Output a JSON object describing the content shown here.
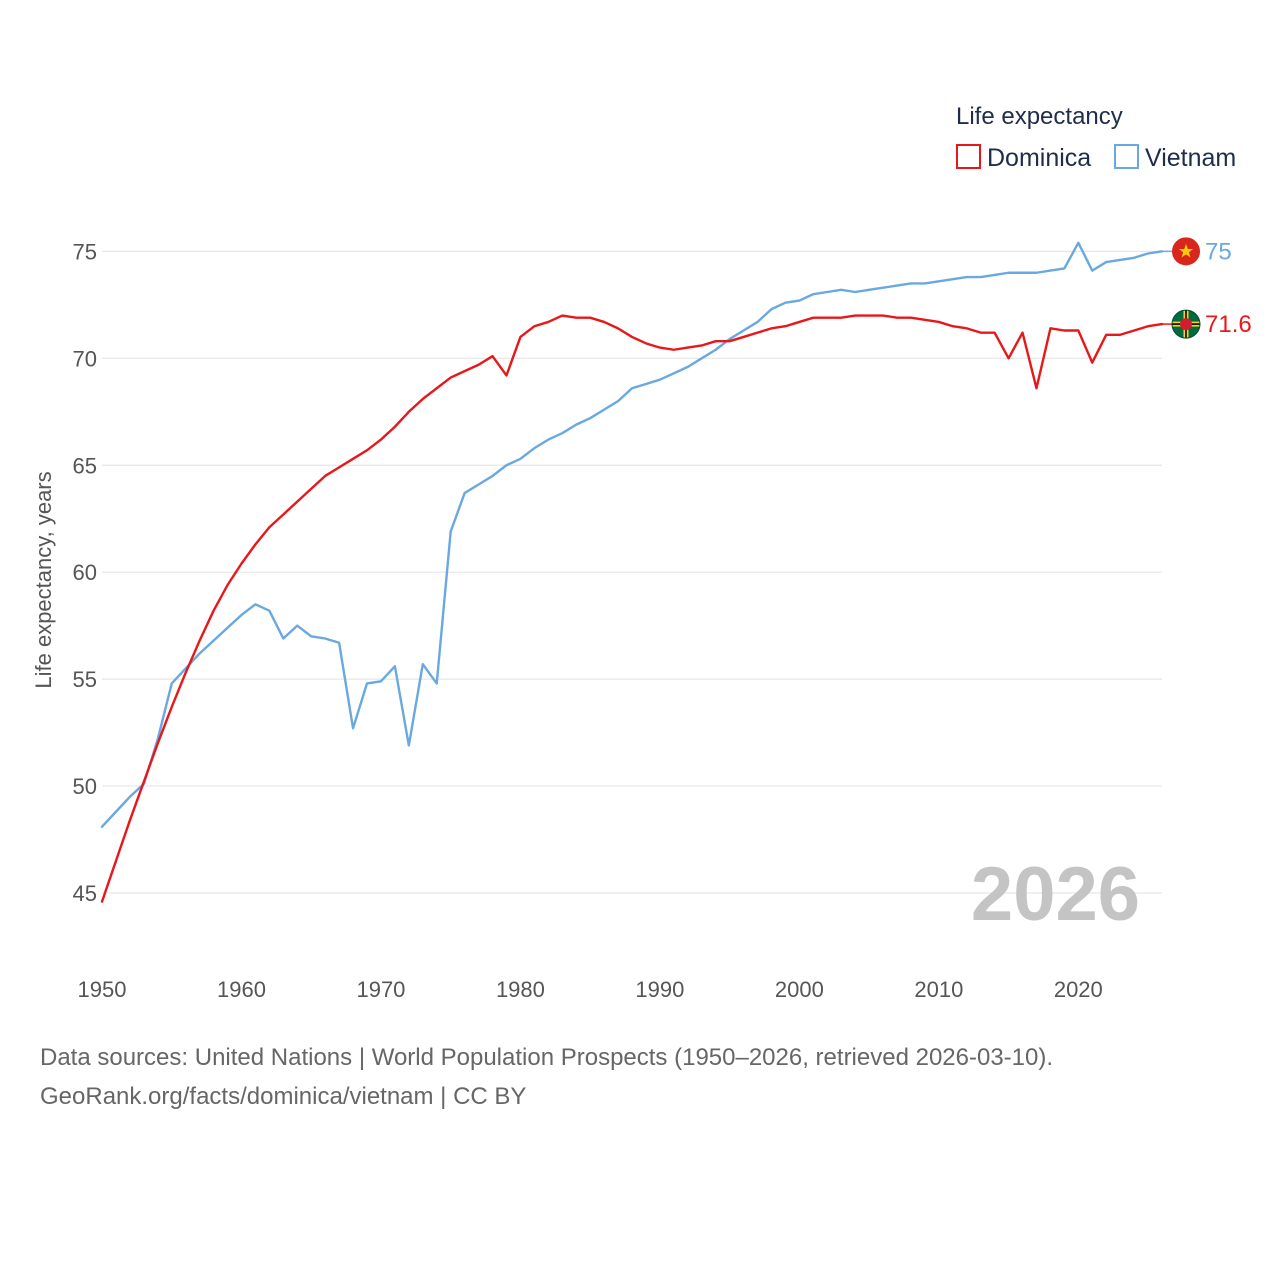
{
  "colors": {
    "dominica": "#e8171a",
    "vietnam": "#69a8e0",
    "grid": "#e6e6e6",
    "axis_text": "#555555"
  },
  "footer": {
    "sources": "Data sources: United Nations | World Population Prospects (1950–2026, retrieved 2026-03-10).",
    "link": "GeoRank.org/facts/dominica/vietnam | CC BY"
  },
  "chart_data": {
    "type": "line",
    "title": "",
    "xlabel": "",
    "ylabel": "Life expectancy, years",
    "xlim": [
      1950,
      2026
    ],
    "ylim": [
      43,
      78
    ],
    "x_ticks": [
      1950,
      1960,
      1970,
      1980,
      1990,
      2000,
      2010,
      2020
    ],
    "y_ticks": [
      45,
      50,
      55,
      60,
      65,
      70,
      75
    ],
    "grid": true,
    "legend_title": "Life expectancy",
    "legend_position": "top-right",
    "year_label": "2026",
    "x": [
      1950,
      1951,
      1952,
      1953,
      1954,
      1955,
      1956,
      1957,
      1958,
      1959,
      1960,
      1961,
      1962,
      1963,
      1964,
      1965,
      1966,
      1967,
      1968,
      1969,
      1970,
      1971,
      1972,
      1973,
      1974,
      1975,
      1976,
      1977,
      1978,
      1979,
      1980,
      1981,
      1982,
      1983,
      1984,
      1985,
      1986,
      1987,
      1988,
      1989,
      1990,
      1991,
      1992,
      1993,
      1994,
      1995,
      1996,
      1997,
      1998,
      1999,
      2000,
      2001,
      2002,
      2003,
      2004,
      2005,
      2006,
      2007,
      2008,
      2009,
      2010,
      2011,
      2012,
      2013,
      2014,
      2015,
      2016,
      2017,
      2018,
      2019,
      2020,
      2021,
      2022,
      2023,
      2024,
      2025,
      2026
    ],
    "series": [
      {
        "name": "Dominica",
        "end_label": "71.6",
        "values": [
          44.6,
          46.5,
          48.4,
          50.2,
          52.0,
          53.7,
          55.3,
          56.8,
          58.2,
          59.4,
          60.4,
          61.3,
          62.1,
          62.7,
          63.3,
          63.9,
          64.5,
          64.9,
          65.3,
          65.7,
          66.2,
          66.8,
          67.5,
          68.1,
          68.6,
          69.1,
          69.4,
          69.7,
          70.1,
          69.2,
          71.0,
          71.5,
          71.7,
          72.0,
          71.9,
          71.9,
          71.7,
          71.4,
          71.0,
          70.7,
          70.5,
          70.4,
          70.5,
          70.6,
          70.8,
          70.8,
          71.0,
          71.2,
          71.4,
          71.5,
          71.7,
          71.9,
          71.9,
          71.9,
          72.0,
          72.0,
          72.0,
          71.9,
          71.9,
          71.8,
          71.7,
          71.5,
          71.4,
          71.2,
          71.2,
          70.0,
          71.2,
          68.6,
          71.4,
          71.3,
          71.3,
          69.8,
          71.1,
          71.1,
          71.3,
          71.5,
          71.6
        ]
      },
      {
        "name": "Vietnam",
        "end_label": "75",
        "values": [
          48.1,
          48.8,
          49.5,
          50.1,
          52.2,
          54.8,
          55.5,
          56.2,
          56.8,
          57.4,
          58.0,
          58.5,
          58.2,
          56.9,
          57.5,
          57.0,
          56.9,
          56.7,
          52.7,
          54.8,
          54.9,
          55.6,
          51.9,
          55.7,
          54.8,
          61.9,
          63.7,
          64.1,
          64.5,
          65.0,
          65.3,
          65.8,
          66.2,
          66.5,
          66.9,
          67.2,
          67.6,
          68.0,
          68.6,
          68.8,
          69.0,
          69.3,
          69.6,
          70.0,
          70.4,
          70.9,
          71.3,
          71.7,
          72.3,
          72.6,
          72.7,
          73.0,
          73.1,
          73.2,
          73.1,
          73.2,
          73.3,
          73.4,
          73.5,
          73.5,
          73.6,
          73.7,
          73.8,
          73.8,
          73.9,
          74.0,
          74.0,
          74.0,
          74.1,
          74.2,
          75.4,
          74.1,
          74.5,
          74.6,
          74.7,
          74.9,
          75.0
        ]
      }
    ]
  }
}
